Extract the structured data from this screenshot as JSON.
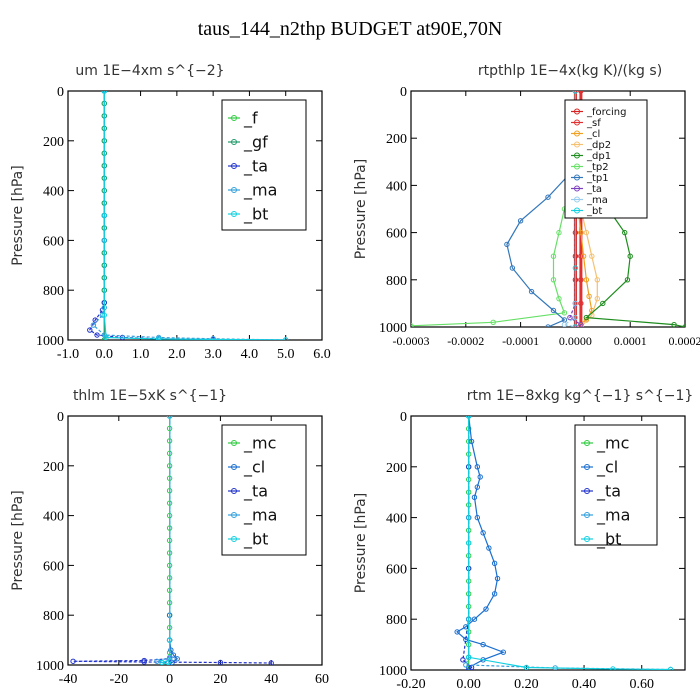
{
  "main_title": "taus_144_n2thp  BUDGET at90E,70N",
  "colors": {
    "f": "#2ecc40",
    "gf": "#1f9a6a",
    "ta": "#2233cc",
    "ma": "#33a0dd",
    "bt": "#11d0e0",
    "mc": "#2ecc40",
    "cl": "#1a6fd0",
    "forcing": "#d62020",
    "sf": "#e03030",
    "cl_orange": "#f0a020",
    "dp2": "#f5c070",
    "dp1": "#1e8c1e",
    "tp2": "#66e066",
    "tp1": "#3377bb",
    "ta_purple": "#7b3fbf",
    "ma_light": "#99ccee"
  },
  "chart_data": [
    {
      "type": "line",
      "title": "um   1E−4xm  s^{−2}",
      "ylabel": "Pressure  [hPa]",
      "xlim": [
        -1.0,
        6.0
      ],
      "ylim": [
        1000,
        0
      ],
      "xticks": [
        "-1.0",
        "0.0",
        "1.0",
        "2.0",
        "3.0",
        "4.0",
        "5.0",
        "6.0"
      ],
      "yticks": [
        "0",
        "200",
        "400",
        "600",
        "800",
        "1000"
      ],
      "legend": [
        "_f",
        "_gf",
        "_ta",
        "_ma",
        "_bt"
      ],
      "series": [
        {
          "name": "_f",
          "color": "f",
          "x": [
            0,
            0,
            0,
            0,
            0,
            0,
            0,
            0,
            0,
            0,
            0,
            0,
            0,
            0,
            0,
            0,
            0,
            0,
            0
          ],
          "y": [
            0,
            50,
            100,
            150,
            200,
            250,
            300,
            350,
            400,
            450,
            500,
            550,
            600,
            650,
            700,
            750,
            800,
            850,
            1000
          ]
        },
        {
          "name": "_gf",
          "color": "gf",
          "x": [
            0,
            0,
            0,
            0,
            0,
            0,
            0,
            0,
            0,
            0,
            0,
            0,
            0,
            0,
            0,
            0,
            0,
            0,
            0
          ],
          "y": [
            0,
            50,
            100,
            150,
            200,
            250,
            300,
            350,
            400,
            450,
            500,
            550,
            600,
            650,
            700,
            750,
            800,
            850,
            1000
          ]
        },
        {
          "name": "_ta",
          "color": "ta",
          "x": [
            0,
            0,
            0,
            -0.05,
            -0.25,
            -0.4,
            -0.2,
            0.5,
            1.5,
            3.0,
            5.0
          ],
          "y": [
            0,
            500,
            850,
            880,
            920,
            960,
            980,
            990,
            995,
            998,
            1000
          ]
        },
        {
          "name": "_ma",
          "color": "ma",
          "x": [
            0,
            0,
            0.0,
            -0.05,
            -0.3,
            0.0,
            1.5,
            3.0,
            5.0
          ],
          "y": [
            0,
            600,
            870,
            900,
            940,
            980,
            990,
            995,
            1000
          ]
        },
        {
          "name": "_bt",
          "color": "bt",
          "x": [
            0,
            0,
            0,
            0.05,
            1.5,
            5.0
          ],
          "y": [
            0,
            500,
            900,
            990,
            996,
            1000
          ]
        }
      ]
    },
    {
      "type": "line",
      "title": "rtpthlp   1E−4x(kg K)/(kg s)",
      "ylabel": "Pressure  [hPa]",
      "xlim": [
        -0.0003,
        0.0002
      ],
      "ylim": [
        1000,
        0
      ],
      "xticks": [
        "-0.0003",
        "-0.0002",
        "-0.0001",
        "0.0000",
        "0.0001",
        "0.0002"
      ],
      "yticks": [
        "0",
        "200",
        "400",
        "600",
        "800",
        "1000"
      ],
      "legend": [
        "_forcing",
        "_sf",
        "_cl",
        "_dp2",
        "_dp1",
        "_tp2",
        "_tp1",
        "_ta",
        "_ma",
        "_bt"
      ],
      "series": [
        {
          "name": "_forcing",
          "color": "forcing",
          "x": [
            0,
            0,
            0,
            0,
            0,
            0,
            0,
            0,
            0,
            0,
            0
          ],
          "y": [
            0,
            100,
            200,
            300,
            400,
            500,
            600,
            700,
            800,
            900,
            1000
          ]
        },
        {
          "name": "_sf",
          "color": "sf",
          "x": [
            1e-05,
            1e-05,
            1e-05,
            1e-05,
            1e-05,
            1e-05,
            1e-05,
            1e-05,
            1e-05,
            1e-05,
            1e-05
          ],
          "y": [
            0,
            100,
            200,
            300,
            400,
            500,
            600,
            700,
            800,
            900,
            1000
          ]
        },
        {
          "name": "_cl",
          "color": "cl_orange",
          "x": [
            0,
            0,
            5e-06,
            1e-05,
            1.5e-05,
            2e-05,
            2.5e-05,
            3e-05,
            2e-05,
            0
          ],
          "y": [
            0,
            400,
            500,
            600,
            700,
            800,
            870,
            930,
            970,
            1000
          ]
        },
        {
          "name": "_dp2",
          "color": "dp2",
          "x": [
            0,
            0,
            1e-05,
            2e-05,
            3e-05,
            4e-05,
            4e-05,
            3e-05,
            1e-05
          ],
          "y": [
            0,
            400,
            500,
            600,
            700,
            800,
            880,
            950,
            1000
          ]
        },
        {
          "name": "_dp1",
          "color": "dp1",
          "x": [
            0,
            1e-05,
            3e-05,
            6e-05,
            9e-05,
            0.0001,
            9.5e-05,
            5e-05,
            2e-05,
            0.00018,
            0.0002
          ],
          "y": [
            200,
            300,
            400,
            500,
            600,
            700,
            800,
            900,
            960,
            990,
            1000
          ]
        },
        {
          "name": "_tp2",
          "color": "tp2",
          "x": [
            0,
            -5e-06,
            -2e-05,
            -3e-05,
            -4e-05,
            -4e-05,
            -3e-05,
            -2e-05,
            -0.00015,
            -0.0003
          ],
          "y": [
            300,
            400,
            500,
            600,
            700,
            800,
            880,
            940,
            980,
            995
          ]
        },
        {
          "name": "_tp1",
          "color": "tp1",
          "x": [
            0,
            -1e-05,
            -5e-05,
            -0.0001,
            -0.000125,
            -0.000115,
            -8e-05,
            -4e-05,
            -2e-05,
            -5e-05
          ],
          "y": [
            250,
            350,
            450,
            550,
            650,
            750,
            850,
            930,
            970,
            1000
          ]
        },
        {
          "name": "_ta",
          "color": "ta_purple",
          "x": [
            0,
            0,
            0,
            -1e-05,
            1e-05,
            0
          ],
          "y": [
            0,
            500,
            900,
            960,
            990,
            1000
          ]
        },
        {
          "name": "_ma",
          "color": "ma_light",
          "x": [
            0,
            0,
            0,
            0,
            -2e-05,
            0
          ],
          "y": [
            0,
            500,
            900,
            960,
            990,
            1000
          ]
        },
        {
          "name": "_bt",
          "color": "bt",
          "x": [
            0,
            0,
            0,
            0,
            0
          ],
          "y": [
            0,
            250,
            500,
            750,
            1000
          ]
        }
      ]
    },
    {
      "type": "line",
      "title": "thlm   1E−5xK  s^{−1}",
      "ylabel": "Pressure  [hPa]",
      "xlim": [
        -40,
        60
      ],
      "ylim": [
        1000,
        0
      ],
      "xticks": [
        "-40",
        "-20",
        "0",
        "20",
        "40",
        "60"
      ],
      "yticks": [
        "0",
        "200",
        "400",
        "600",
        "800",
        "1000"
      ],
      "legend": [
        "_mc",
        "_cl",
        "_ta",
        "_ma",
        "_bt"
      ],
      "series": [
        {
          "name": "_mc",
          "color": "mc",
          "x": [
            0,
            0,
            0,
            0,
            0,
            0,
            0,
            0,
            0,
            0,
            0,
            0,
            0,
            0,
            0,
            0,
            0,
            0,
            0,
            0,
            0
          ],
          "y": [
            0,
            50,
            100,
            150,
            200,
            250,
            300,
            350,
            400,
            450,
            500,
            550,
            600,
            650,
            700,
            750,
            800,
            850,
            900,
            950,
            1000
          ]
        },
        {
          "name": "_cl",
          "color": "cl",
          "x": [
            0,
            0,
            0,
            0.5,
            1.5,
            3.0,
            1.0,
            0
          ],
          "y": [
            0,
            800,
            900,
            940,
            960,
            975,
            990,
            1000
          ]
        },
        {
          "name": "_ta",
          "color": "ta",
          "x": [
            0,
            0,
            0,
            -10,
            -38,
            -10,
            20,
            40
          ],
          "y": [
            0,
            900,
            975,
            982,
            985,
            988,
            990,
            992
          ]
        },
        {
          "name": "_ma",
          "color": "ma",
          "x": [
            0,
            0,
            0,
            -5,
            -3,
            0
          ],
          "y": [
            0,
            900,
            970,
            985,
            990,
            1000
          ]
        },
        {
          "name": "_bt",
          "color": "bt",
          "x": [
            0,
            0,
            0,
            -3,
            0
          ],
          "y": [
            0,
            900,
            980,
            990,
            1000
          ]
        }
      ]
    },
    {
      "type": "line",
      "title": "rtm   1E−8xkg  kg^{−1}  s^{−1}",
      "ylabel": "Pressure  [hPa]",
      "xlim": [
        -0.2,
        0.75
      ],
      "ylim": [
        1000,
        0
      ],
      "xticks": [
        "-0.20",
        "0.00",
        "0.20",
        "0.40",
        "0.60"
      ],
      "yticks": [
        "0",
        "200",
        "400",
        "600",
        "800",
        "1000"
      ],
      "legend": [
        "_mc",
        "_cl",
        "_ta",
        "_ma",
        "_bt"
      ],
      "series": [
        {
          "name": "_mc",
          "color": "mc",
          "x": [
            0,
            0,
            0,
            0,
            0,
            0,
            0,
            0,
            0,
            0,
            0,
            0,
            0,
            0,
            0,
            0,
            0,
            0,
            0,
            0,
            0
          ],
          "y": [
            0,
            50,
            100,
            150,
            200,
            250,
            300,
            350,
            400,
            450,
            500,
            550,
            600,
            650,
            700,
            750,
            800,
            850,
            900,
            950,
            1000
          ]
        },
        {
          "name": "_cl",
          "color": "cl",
          "x": [
            0,
            0.01,
            0.03,
            0.04,
            0.03,
            0.02,
            0.03,
            0.05,
            0.07,
            0.09,
            0.1,
            0.09,
            0.06,
            0.02,
            -0.01,
            -0.04,
            -0.01,
            0.05,
            0.12,
            0.05,
            0
          ],
          "y": [
            0,
            100,
            200,
            240,
            280,
            320,
            400,
            460,
            520,
            580,
            640,
            700,
            760,
            800,
            830,
            850,
            880,
            900,
            930,
            960,
            990
          ]
        },
        {
          "name": "_ta",
          "color": "ta",
          "x": [
            0,
            0,
            0,
            0,
            0,
            -0.02,
            0.01,
            0
          ],
          "y": [
            0,
            200,
            400,
            600,
            800,
            960,
            990,
            1000
          ]
        },
        {
          "name": "_ma",
          "color": "ma",
          "x": [
            0,
            0,
            0,
            0,
            -0.01,
            0.3,
            0.7
          ],
          "y": [
            0,
            400,
            800,
            950,
            980,
            992,
            998
          ]
        },
        {
          "name": "_bt",
          "color": "bt",
          "x": [
            0,
            0,
            0,
            0.2,
            0.5,
            0.7
          ],
          "y": [
            0,
            500,
            950,
            990,
            996,
            998
          ]
        }
      ]
    }
  ]
}
